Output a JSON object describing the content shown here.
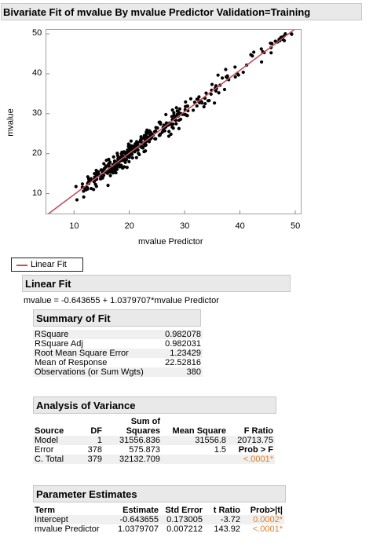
{
  "title": "Bivariate Fit of mvalue By mvalue Predictor Validation=Training",
  "chart_data": {
    "type": "scatter",
    "xlabel": "mvalue Predictor",
    "ylabel": "mvalue",
    "xlim": [
      5,
      51
    ],
    "ylim": [
      5,
      51
    ],
    "xticks": [
      "10",
      "20",
      "30",
      "40",
      "50"
    ],
    "yticks": [
      "10",
      "20",
      "30",
      "40",
      "50"
    ],
    "fit": {
      "intercept": -0.643655,
      "slope": 1.0379707,
      "color": "#c0505a"
    },
    "point_color": "#000000"
  },
  "legend": {
    "label": "Linear Fit"
  },
  "linear_fit": {
    "header": "Linear Fit",
    "equation": "mvalue = -0.643655 + 1.0379707*mvalue Predictor"
  },
  "summary_of_fit": {
    "header": "Summary of Fit",
    "rows": [
      {
        "label": "RSquare",
        "value": "0.982078"
      },
      {
        "label": "RSquare Adj",
        "value": "0.982031"
      },
      {
        "label": "Root Mean Square Error",
        "value": "1.23429"
      },
      {
        "label": "Mean of Response",
        "value": "22.52816"
      },
      {
        "label": "Observations (or Sum Wgts)",
        "value": "380"
      }
    ]
  },
  "anova": {
    "header": "Analysis of Variance",
    "columns": [
      "Source",
      "DF",
      "Sum of Squares",
      "Mean Square",
      "F Ratio"
    ],
    "col_top": "Sum of",
    "col_bottom": "Squares",
    "rows": [
      {
        "source": "Model",
        "df": "1",
        "ss": "31556.836",
        "ms": "31556.8",
        "f": "20713.75"
      },
      {
        "source": "Error",
        "df": "378",
        "ss": "575.873",
        "ms": "1.5",
        "f": "Prob > F"
      },
      {
        "source": "C. Total",
        "df": "379",
        "ss": "32132.709",
        "ms": "",
        "f": "<.0001*"
      }
    ]
  },
  "params": {
    "header": "Parameter Estimates",
    "columns": [
      "Term",
      "Estimate",
      "Std Error",
      "t Ratio",
      "Prob>|t|"
    ],
    "rows": [
      {
        "term": "Intercept",
        "est": "-0.643655",
        "se": "0.173005",
        "t": "-3.72",
        "p": "0.0002*"
      },
      {
        "term": "mvalue Predictor",
        "est": "1.0379707",
        "se": "0.007212",
        "t": "143.92",
        "p": "<.0001*"
      }
    ]
  }
}
